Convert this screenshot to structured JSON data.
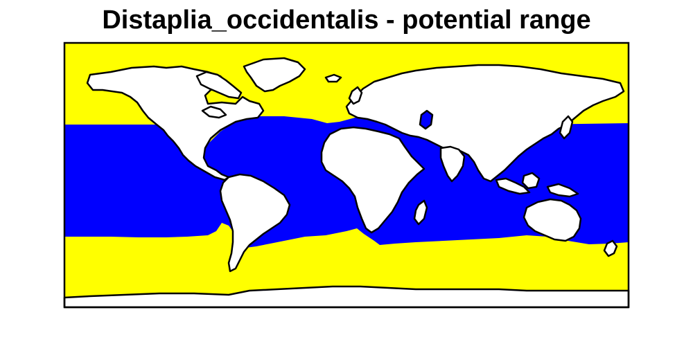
{
  "title": "Distaplia_occidentalis - potential range",
  "colors": {
    "suitable_range": "#0000ff",
    "unsuitable_ocean": "#ffff00",
    "land": "#ffffff",
    "outline": "#000000"
  }
}
